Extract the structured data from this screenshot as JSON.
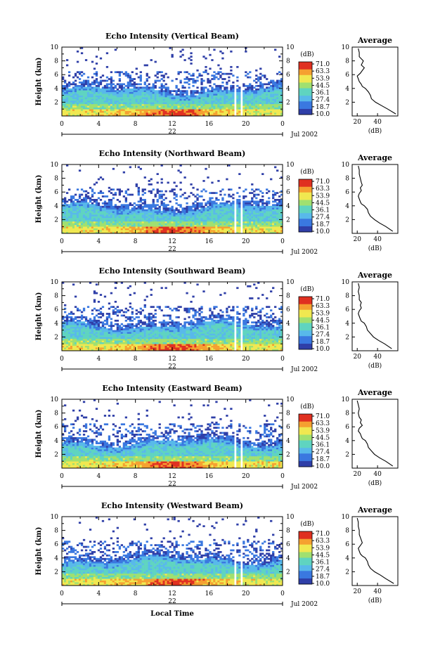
{
  "chart_data": [
    {
      "type": "heatmap",
      "title": "Echo Intensity (Vertical Beam)",
      "ylabel": "Height (km)",
      "ylim": [
        0,
        10
      ],
      "yticks": [
        "2",
        "4",
        "6",
        "8",
        "10"
      ],
      "xticks": [
        "0",
        "4",
        "8",
        "12",
        "16",
        "20",
        "0"
      ],
      "day": "22",
      "date_label": "Jul 2002",
      "colorbar": {
        "unit": "(dB)",
        "levels": [
          "71.0",
          "63.3",
          "53.9",
          "44.5",
          "36.1",
          "27.4",
          "18.7",
          "10.0"
        ]
      },
      "profile": {
        "title": "Average",
        "xlabel": "(dB)",
        "xticks": [
          "20",
          "40"
        ],
        "yticks": [
          "2",
          "4",
          "6",
          "8",
          "10"
        ],
        "x": [
          58,
          50,
          44,
          38,
          34,
          33,
          31,
          28,
          25,
          24,
          22,
          21,
          20,
          23,
          25,
          27,
          24,
          26,
          22,
          22,
          21
        ],
        "y": [
          0.3,
          1.0,
          1.5,
          2.0,
          2.5,
          3.0,
          3.5,
          4.0,
          4.3,
          4.6,
          5.0,
          5.4,
          5.8,
          6.2,
          6.6,
          7.0,
          7.4,
          8.0,
          8.6,
          9.2,
          9.8
        ]
      }
    },
    {
      "type": "heatmap",
      "title": "Echo Intensity (Northward Beam)",
      "ylabel": "Height (km)",
      "ylim": [
        0,
        10
      ],
      "yticks": [
        "2",
        "4",
        "6",
        "8",
        "10"
      ],
      "xticks": [
        "0",
        "4",
        "8",
        "12",
        "16",
        "20",
        "0"
      ],
      "day": "22",
      "date_label": "Jul 2002",
      "colorbar": {
        "unit": "(dB)",
        "levels": [
          "71.0",
          "63.3",
          "53.9",
          "44.5",
          "36.1",
          "27.4",
          "18.7",
          "10.0"
        ]
      },
      "profile": {
        "title": "Average",
        "xlabel": "(dB)",
        "xticks": [
          "20",
          "40"
        ],
        "yticks": [
          "2",
          "4",
          "6",
          "8",
          "10"
        ],
        "x": [
          55,
          48,
          42,
          37,
          33,
          31,
          30,
          27,
          24,
          23,
          22,
          21,
          22,
          24,
          23,
          25,
          24,
          23,
          22,
          22,
          21
        ],
        "y": [
          0.3,
          1.0,
          1.5,
          2.0,
          2.5,
          3.0,
          3.5,
          4.0,
          4.3,
          4.6,
          5.0,
          5.4,
          5.8,
          6.2,
          6.6,
          7.0,
          7.4,
          8.0,
          8.6,
          9.2,
          9.8
        ]
      }
    },
    {
      "type": "heatmap",
      "title": "Echo Intensity (Southward Beam)",
      "ylabel": "Height (km)",
      "ylim": [
        0,
        10
      ],
      "yticks": [
        "2",
        "4",
        "6",
        "8",
        "10"
      ],
      "xticks": [
        "0",
        "4",
        "8",
        "12",
        "16",
        "20",
        "0"
      ],
      "day": "22",
      "date_label": "Jul 2002",
      "colorbar": {
        "unit": "(dB)",
        "levels": [
          "71.0",
          "63.3",
          "53.9",
          "44.5",
          "36.1",
          "27.4",
          "18.7",
          "10.0"
        ]
      },
      "profile": {
        "title": "Average",
        "xlabel": "(dB)",
        "xticks": [
          "20",
          "40"
        ],
        "yticks": [
          "2",
          "4",
          "6",
          "8",
          "10"
        ],
        "x": [
          54,
          47,
          41,
          36,
          33,
          30,
          29,
          27,
          24,
          23,
          22,
          21,
          22,
          24,
          23,
          24,
          22,
          22,
          21,
          22,
          21
        ],
        "y": [
          0.3,
          1.0,
          1.5,
          2.0,
          2.5,
          3.0,
          3.5,
          4.0,
          4.3,
          4.6,
          5.0,
          5.4,
          5.8,
          6.2,
          6.6,
          7.0,
          7.4,
          8.0,
          8.6,
          9.2,
          9.8
        ]
      }
    },
    {
      "type": "heatmap",
      "title": "Echo Intensity (Eastward Beam)",
      "ylabel": "Height (km)",
      "ylim": [
        0,
        10
      ],
      "yticks": [
        "2",
        "4",
        "6",
        "8",
        "10"
      ],
      "xticks": [
        "0",
        "4",
        "8",
        "12",
        "16",
        "20",
        "0"
      ],
      "day": "22",
      "date_label": "Jul 2002",
      "colorbar": {
        "unit": "(dB)",
        "levels": [
          "71.0",
          "63.3",
          "53.9",
          "44.5",
          "36.1",
          "27.4",
          "18.7",
          "10.0"
        ]
      },
      "profile": {
        "title": "Average",
        "xlabel": "(dB)",
        "xticks": [
          "20",
          "40"
        ],
        "yticks": [
          "2",
          "4",
          "6",
          "8",
          "10"
        ],
        "x": [
          55,
          48,
          42,
          37,
          34,
          31,
          30,
          28,
          25,
          24,
          23,
          21,
          22,
          25,
          23,
          24,
          22,
          21,
          22,
          21,
          20
        ],
        "y": [
          0.3,
          1.0,
          1.5,
          2.0,
          2.5,
          3.0,
          3.5,
          4.0,
          4.3,
          4.6,
          5.0,
          5.4,
          5.8,
          6.2,
          6.6,
          7.0,
          7.4,
          8.0,
          8.6,
          9.2,
          9.8
        ]
      }
    },
    {
      "type": "heatmap",
      "title": "Echo Intensity (Westward Beam)",
      "ylabel": "Height (km)",
      "ylim": [
        0,
        10
      ],
      "yticks": [
        "2",
        "4",
        "6",
        "8",
        "10"
      ],
      "xticks": [
        "0",
        "4",
        "8",
        "12",
        "16",
        "20",
        "0"
      ],
      "day": "22",
      "date_label": "Jul 2002",
      "xlabel": "Local Time",
      "colorbar": {
        "unit": "(dB)",
        "levels": [
          "71.0",
          "63.3",
          "53.9",
          "44.5",
          "36.1",
          "27.4",
          "18.7",
          "10.0"
        ]
      },
      "profile": {
        "title": "Average",
        "xlabel": "(dB)",
        "xticks": [
          "20",
          "40"
        ],
        "yticks": [
          "2",
          "4",
          "6",
          "8",
          "10"
        ],
        "x": [
          56,
          48,
          43,
          37,
          33,
          31,
          30,
          28,
          25,
          23,
          22,
          21,
          23,
          25,
          24,
          23,
          22,
          22,
          21,
          21,
          20
        ],
        "y": [
          0.3,
          1.0,
          1.5,
          2.0,
          2.5,
          3.0,
          3.5,
          4.0,
          4.3,
          4.6,
          5.0,
          5.4,
          5.8,
          6.2,
          6.6,
          7.0,
          7.4,
          8.0,
          8.6,
          9.2,
          9.8
        ]
      }
    }
  ],
  "colors": {
    "scale": [
      "#2f3fa8",
      "#3a78e0",
      "#58b9ea",
      "#5fd4c0",
      "#a0e070",
      "#f0e850",
      "#f5a030",
      "#e03020"
    ],
    "axis": "#000000",
    "gap": "#ffffff"
  }
}
